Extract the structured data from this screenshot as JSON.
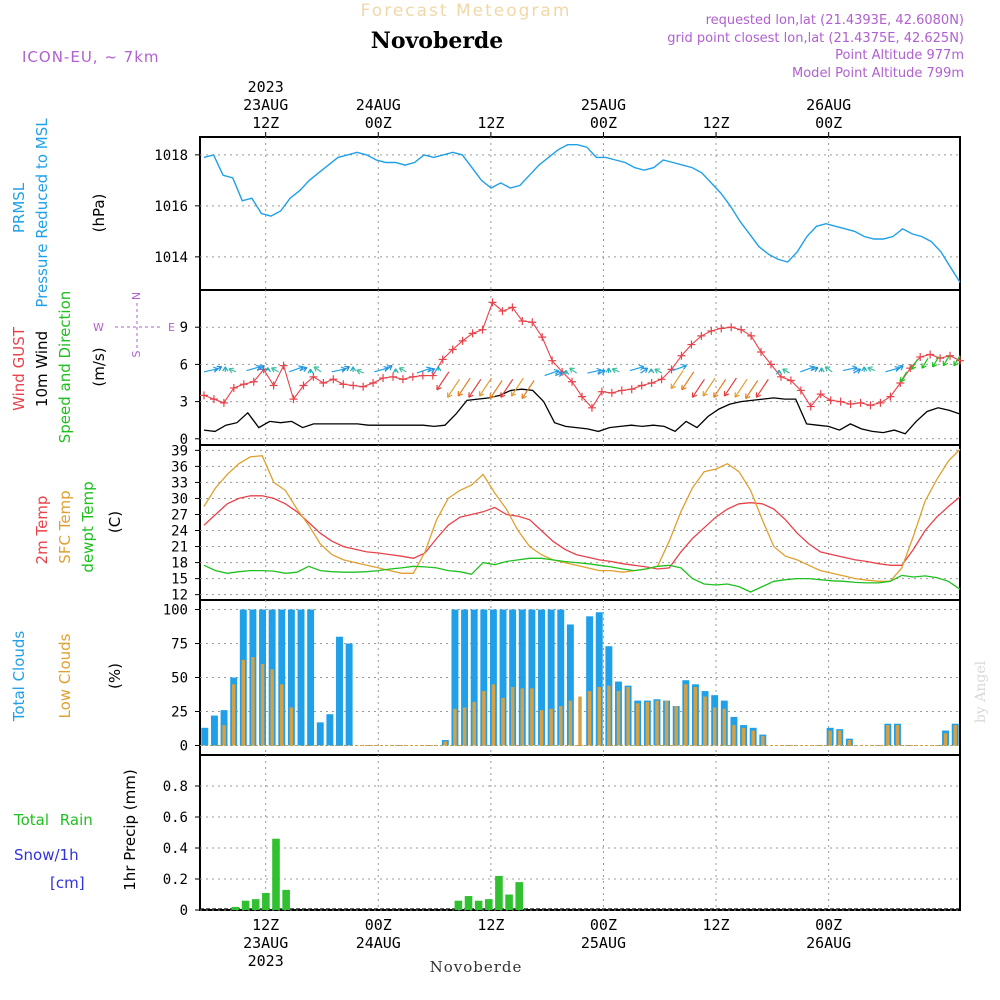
{
  "header": {
    "product": "Forecast Meteogram",
    "location": "Novoberde",
    "model": "ICON-EU, ~ 7km",
    "requested": "requested lon,lat (21.4393E, 42.6080N)",
    "gridpoint": "grid point closest lon,lat (21.4375E, 42.625N)",
    "point_alt": "Point Altitude 977m",
    "model_alt": "Model Point Altitude 799m"
  },
  "footer": {
    "location": "Novoberde",
    "credit": "by Angel"
  },
  "colors": {
    "pressure": "#1fa0e8",
    "gust": "#e8424a",
    "wind": "#000000",
    "speed_dir": "#20c020",
    "temp2m": "#e8424a",
    "sfc": "#e0a030",
    "dewpt": "#20c020",
    "total_clouds": "#1fa0e8",
    "low_clouds": "#d8a040",
    "rain": "#30c030",
    "snow": "#3030e0",
    "label_purple": "#b060d0"
  },
  "chart_data": {
    "type": "line",
    "time_axis": {
      "start": "2023-08-23 05Z",
      "end": "2023-08-26 14Z",
      "step": "1h",
      "top_labels": [
        {
          "time": "2023-08-23 12Z",
          "lines": [
            "2023",
            "23AUG",
            "12Z"
          ]
        },
        {
          "time": "2023-08-24 00Z",
          "lines": [
            "24AUG",
            "00Z"
          ]
        },
        {
          "time": "2023-08-24 12Z",
          "lines": [
            "12Z"
          ]
        },
        {
          "time": "2023-08-25 00Z",
          "lines": [
            "25AUG",
            "00Z"
          ]
        },
        {
          "time": "2023-08-25 12Z",
          "lines": [
            "12Z"
          ]
        },
        {
          "time": "2023-08-26 00Z",
          "lines": [
            "26AUG",
            "00Z"
          ]
        }
      ],
      "bottom_labels": [
        {
          "time": "2023-08-23 12Z",
          "lines": [
            "12Z",
            "23AUG",
            "2023"
          ]
        },
        {
          "time": "2023-08-24 00Z",
          "lines": [
            "00Z",
            "24AUG"
          ]
        },
        {
          "time": "2023-08-24 12Z",
          "lines": [
            "12Z"
          ]
        },
        {
          "time": "2023-08-25 00Z",
          "lines": [
            "00Z",
            "25AUG"
          ]
        },
        {
          "time": "2023-08-25 12Z",
          "lines": [
            "12Z"
          ]
        },
        {
          "time": "2023-08-26 00Z",
          "lines": [
            "00Z",
            "26AUG"
          ]
        }
      ]
    },
    "panels": [
      {
        "id": "pressure",
        "labels": [
          "PRMSL",
          "Pressure Reduced to MSL"
        ],
        "unit": "(hPa)",
        "ylim": [
          1012.7,
          1018.7
        ],
        "yticks": [
          1014,
          1016,
          1018
        ],
        "grid": true,
        "series": [
          {
            "values": [
              1017.9,
              1018.0,
              1017.2,
              1017.1,
              1016.2,
              1016.3,
              1015.7,
              1015.6,
              1015.8,
              1016.3,
              1016.6,
              1017.0,
              1017.3,
              1017.6,
              1017.9,
              1018.0,
              1018.1,
              1018.0,
              1017.8,
              1017.7,
              1017.7,
              1017.6,
              1017.7,
              1018.0,
              1017.9,
              1018.0,
              1018.1,
              1018.0,
              1017.5,
              1017.0,
              1016.7,
              1016.9,
              1016.7,
              1016.8,
              1017.2,
              1017.6,
              1017.9,
              1018.2,
              1018.4,
              1018.4,
              1018.3,
              1017.9,
              1017.9,
              1017.8,
              1017.7,
              1017.5,
              1017.4,
              1017.5,
              1017.8,
              1017.7,
              1017.6,
              1017.5,
              1017.3,
              1016.9,
              1016.5,
              1016.0,
              1015.4,
              1014.9,
              1014.4,
              1014.1,
              1013.9,
              1013.8,
              1014.2,
              1014.8,
              1015.2,
              1015.3,
              1015.2,
              1015.1,
              1015.0,
              1014.8,
              1014.7,
              1014.7,
              1014.8,
              1015.1,
              1014.9,
              1014.8,
              1014.6,
              1014.2,
              1013.6,
              1013.0
            ]
          }
        ]
      },
      {
        "id": "wind",
        "labels": [
          "Wind GUST",
          "10m Wind",
          "Speed and Direction"
        ],
        "unit": "(m/s)",
        "ylim": [
          -0.5,
          12
        ],
        "yticks": [
          0,
          3,
          6,
          9
        ],
        "compass": [
          "N",
          "W",
          "E",
          "S"
        ],
        "grid": true,
        "series": [
          {
            "name": "Wind GUST",
            "marker": "+",
            "values": [
              3.5,
              3.2,
              2.9,
              4.1,
              4.4,
              4.6,
              5.6,
              4.3,
              5.9,
              3.2,
              4.3,
              5.0,
              4.5,
              4.8,
              4.4,
              4.3,
              4.2,
              4.5,
              4.9,
              5.0,
              4.8,
              5.0,
              5.1,
              5.1,
              6.4,
              7.2,
              7.9,
              8.5,
              8.8,
              11.0,
              10.3,
              10.6,
              9.5,
              9.4,
              8.2,
              6.3,
              5.4,
              4.6,
              3.4,
              2.5,
              3.8,
              3.7,
              3.9,
              4.0,
              4.3,
              4.5,
              4.8,
              5.6,
              6.7,
              7.6,
              8.3,
              8.7,
              8.9,
              9.0,
              8.8,
              8.3,
              7.0,
              6.0,
              5.0,
              4.7,
              3.9,
              2.6,
              3.6,
              3.1,
              3.0,
              2.8,
              2.9,
              2.7,
              2.9,
              3.4,
              4.5,
              5.7,
              6.6,
              6.8,
              6.5,
              6.7,
              6.3
            ]
          },
          {
            "name": "10m Wind",
            "values": [
              0.7,
              0.6,
              1.1,
              1.3,
              2.1,
              0.9,
              1.4,
              1.3,
              1.4,
              0.9,
              1.2,
              1.2,
              1.2,
              1.2,
              1.2,
              1.1,
              1.1,
              1.1,
              1.1,
              1.1,
              1.1,
              1.0,
              1.1,
              2.0,
              3.1,
              3.2,
              3.3,
              3.5,
              3.9,
              4.0,
              3.9,
              3.0,
              1.3,
              1.0,
              0.9,
              0.8,
              0.6,
              0.9,
              1.0,
              1.1,
              1.0,
              1.1,
              1.0,
              0.6,
              1.4,
              0.9,
              1.8,
              2.4,
              2.8,
              3.0,
              3.1,
              3.2,
              3.3,
              3.2,
              3.2,
              1.2,
              1.1,
              1.0,
              0.7,
              1.2,
              0.8,
              0.6,
              0.5,
              0.7,
              0.4,
              1.4,
              2.2,
              2.5,
              2.3,
              2.0
            ]
          },
          {
            "name": "Speed and Direction",
            "values": [
              5.4,
              5.5,
              5.4,
              5.4,
              5.5,
              5.5,
              5.5,
              5.4,
              5.4,
              5.5,
              5.3,
              5.4,
              5.4,
              5.5,
              5.4,
              5.3,
              5.4,
              5.5,
              5.4,
              5.4,
              5.3,
              5.4,
              5.5,
              5.4,
              4.8,
              4.9,
              4.8,
              4.9,
              4.7,
              4.8,
              4.9,
              4.7,
              5.1,
              5.1,
              5.2,
              5.3,
              5.3,
              5.2,
              5.3,
              5.4,
              5.5,
              5.3,
              5.4,
              5.3,
              5.5,
              5.5,
              5.4,
              4.8,
              4.9,
              4.8,
              4.9,
              4.8,
              4.7,
              4.8,
              5.3,
              5.3,
              5.4,
              5.5,
              5.4,
              5.4,
              5.5,
              5.3,
              5.4,
              5.5,
              5.4,
              5.5,
              5.4,
              6.4,
              6.5,
              6.6,
              6.7,
              6.7
            ]
          }
        ]
      },
      {
        "id": "temp",
        "labels": [
          "2m Temp",
          "SFC Temp",
          "dewpt Temp"
        ],
        "unit": "(C)",
        "ylim": [
          11,
          40
        ],
        "yticks": [
          12,
          15,
          18,
          21,
          24,
          27,
          30,
          33,
          36,
          39
        ],
        "grid": true,
        "series": [
          {
            "name": "2m Temp",
            "values": [
              25,
              27,
              29,
              30,
              30.5,
              30.5,
              30,
              29,
              27.5,
              25.5,
              23.5,
              22,
              21,
              20.5,
              20,
              19.8,
              19.5,
              19.2,
              18.8,
              19.8,
              22.5,
              25,
              26.5,
              27,
              27.5,
              28.3,
              27,
              26.7,
              26,
              24,
              22,
              20.5,
              19.5,
              19,
              18.5,
              18.2,
              17.8,
              17.5,
              17.2,
              16.8,
              17,
              20,
              22.5,
              24.5,
              26.5,
              28,
              29,
              29.2,
              29,
              28,
              26,
              23.5,
              21.5,
              20,
              19.5,
              19,
              18.5,
              18.2,
              17.8,
              17.5,
              17.5,
              20.5,
              24,
              26.5,
              28.5,
              30.3
            ]
          },
          {
            "name": "SFC Temp",
            "values": [
              28.5,
              32,
              34.5,
              36.5,
              37.8,
              38,
              33,
              31.5,
              28,
              25,
              21.5,
              19.5,
              18.5,
              18,
              17.5,
              17,
              16.5,
              16,
              16,
              20,
              26,
              30,
              31.5,
              32.5,
              34.5,
              31,
              28,
              24,
              21,
              19.5,
              18.5,
              18,
              17.5,
              17,
              16.5,
              16.5,
              16.2,
              16.5,
              16.8,
              17.3,
              22,
              27.5,
              32,
              35,
              35.5,
              36.5,
              35,
              31.5,
              26,
              21,
              19.2,
              18.5,
              17.5,
              16.5,
              16,
              15.5,
              15,
              14.7,
              14.5,
              14.5,
              17,
              23,
              29.5,
              33.5,
              37,
              39.2
            ]
          },
          {
            "name": "dewpt Temp",
            "values": [
              17.5,
              16.5,
              16,
              16.3,
              16.5,
              16.5,
              16.4,
              16,
              16.2,
              17.3,
              16.5,
              16.3,
              16.2,
              16.2,
              16.3,
              16.5,
              16.8,
              17,
              17.3,
              17.2,
              17,
              16.5,
              16.3,
              15.8,
              18,
              17.6,
              18.2,
              18.5,
              18.8,
              18.8,
              18.5,
              18.2,
              18,
              17.8,
              17.5,
              17.2,
              16.8,
              16.5,
              16.8,
              17.3,
              17.5,
              17,
              15,
              14,
              13.8,
              14,
              13.5,
              12.5,
              13.5,
              14.5,
              14.8,
              15,
              15,
              14.8,
              14.6,
              14.5,
              14.3,
              14.2,
              14.2,
              14.5,
              15.6,
              15.3,
              15.5,
              15.2,
              14.5,
              13
            ]
          }
        ]
      },
      {
        "id": "clouds",
        "type": "bar",
        "labels": [
          "Total Clouds",
          "Low Clouds"
        ],
        "unit": "(%)",
        "ylim": [
          -7,
          107
        ],
        "yticks": [
          0,
          25,
          50,
          75,
          100
        ],
        "grid": true,
        "series": [
          {
            "name": "Total Clouds",
            "values": [
              13,
              22,
              26,
              50,
              100,
              100,
              100,
              100,
              100,
              100,
              100,
              100,
              17,
              23,
              80,
              75,
              0,
              0,
              0,
              0,
              0,
              0,
              0,
              0,
              0,
              4,
              100,
              100,
              100,
              100,
              100,
              100,
              100,
              100,
              100,
              100,
              100,
              100,
              89,
              0,
              95,
              98,
              73,
              47,
              44,
              33,
              33,
              34,
              33,
              29,
              48,
              45,
              40,
              37,
              33,
              21,
              15,
              13,
              8,
              0,
              0,
              0,
              0,
              0,
              0,
              13,
              12,
              5,
              0,
              0,
              0,
              16,
              16,
              0,
              0,
              0,
              0,
              11,
              16
            ]
          },
          {
            "name": "Low Clouds",
            "values": [
              0,
              0,
              15,
              45,
              63,
              65,
              60,
              56,
              45,
              28,
              0,
              0,
              0,
              0,
              0,
              0,
              0,
              0,
              0,
              0,
              0,
              0,
              0,
              0,
              0,
              3,
              27,
              28,
              32,
              40,
              45,
              35,
              43,
              42,
              42,
              26,
              27,
              29,
              33,
              36,
              40,
              43,
              44,
              40,
              43,
              31,
              32,
              33,
              33,
              29,
              45,
              43,
              36,
              28,
              27,
              15,
              13,
              11,
              7,
              0,
              0,
              0,
              0,
              0,
              0,
              11,
              11,
              4,
              0,
              0,
              0,
              15,
              15,
              0,
              0,
              0,
              0,
              9,
              15
            ]
          }
        ]
      },
      {
        "id": "precip",
        "type": "bar",
        "labels": [
          "Total Rain",
          "Snow/1h",
          "[cm]"
        ],
        "unit": "1hr Precip (mm)",
        "ylim": [
          0,
          1.0
        ],
        "yticks": [
          0,
          0.2,
          0.4,
          0.6,
          0.8
        ],
        "grid": true,
        "series": [
          {
            "name": "Total Rain",
            "values": [
              0,
              0,
              0,
              0.02,
              0.06,
              0.07,
              0.11,
              0.46,
              0.13,
              0,
              0,
              0,
              0,
              0,
              0,
              0,
              0,
              0,
              0,
              0,
              0,
              0,
              0,
              0,
              0,
              0.06,
              0.09,
              0.06,
              0.07,
              0.22,
              0.1,
              0.18,
              0,
              0,
              0,
              0,
              0,
              0,
              0,
              0,
              0,
              0,
              0,
              0,
              0,
              0,
              0,
              0,
              0,
              0,
              0,
              0,
              0,
              0,
              0,
              0,
              0,
              0,
              0,
              0,
              0,
              0,
              0,
              0,
              0,
              0,
              0,
              0,
              0,
              0,
              0,
              0,
              0,
              0,
              0
            ]
          }
        ]
      }
    ]
  }
}
